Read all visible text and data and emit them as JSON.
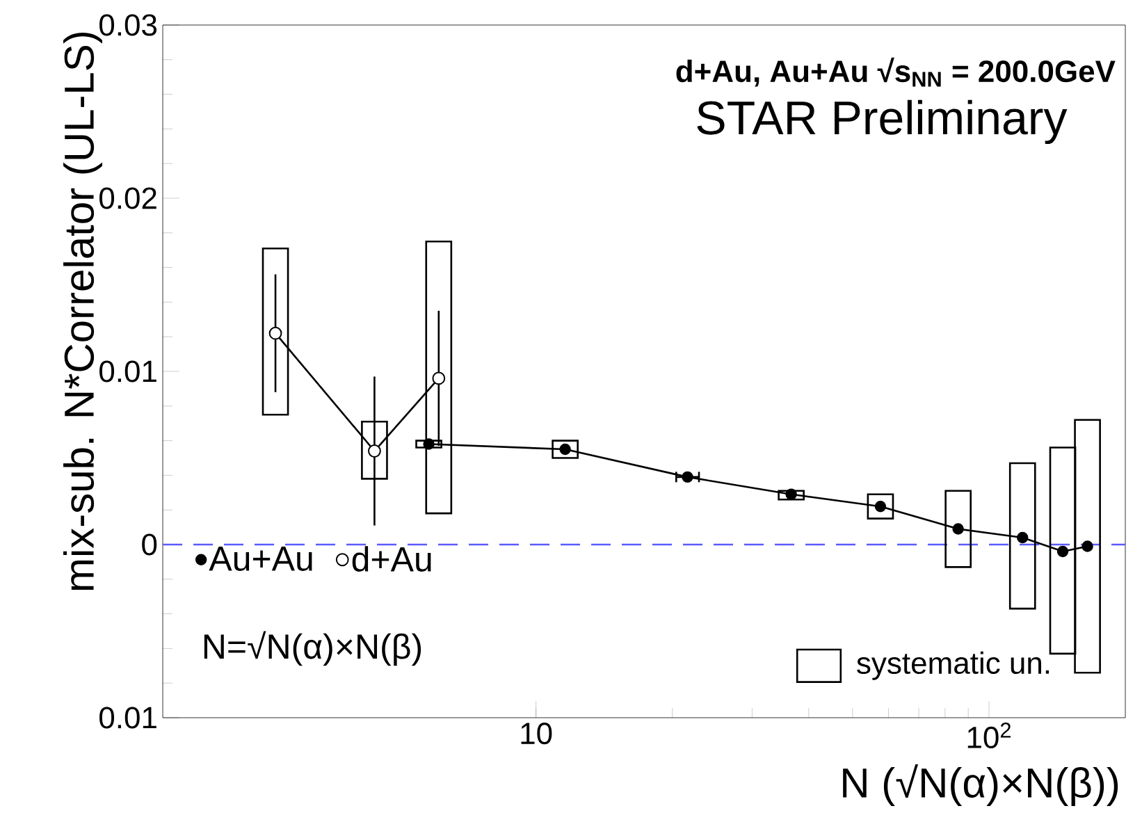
{
  "chart_data": {
    "type": "line",
    "title": "**d+Au, Au+Au √s$_{NN}$ = 200.0GeV**",
    "xlabel": "N (√N(α)×N(β))",
    "ylabel": "mix-sub. N*Correlator (UL-LS)",
    "annotations": [
      "STAR Preliminary",
      "N=√N(α)×N(β)"
    ],
    "log": "x",
    "xlim": [
      1.5,
      200
    ],
    "ylim": [
      -0.01,
      0.03
    ],
    "xticks": [
      {
        "value": 10,
        "label": "10"
      },
      {
        "value": 100,
        "label": "10$^{2}$"
      }
    ],
    "yticks": [
      {
        "value": -0.01,
        "label": "0.01"
      },
      0,
      0.01,
      0.02,
      0.03
    ],
    "marker": "circle",
    "line_style": "solid",
    "legend": "bottom left",
    "grid": false,
    "ref_lines": [
      {
        "axis": "y",
        "value": 0,
        "color": "#5a5aff",
        "line_style": "dashed"
      }
    ],
    "series": [
      {
        "name": "Au+Au",
        "color": "#000000",
        "x": [
          5.8,
          11.6,
          21.6,
          36.6,
          57.6,
          85.5,
          118.6,
          145.5,
          165
        ],
        "values": [
          0.0058,
          0.0055,
          0.0039,
          0.0029,
          0.0022,
          0.0009,
          0.0004,
          -0.0004,
          -0.0001
        ],
        "xerrors": [
          null,
          null,
          [
            20.4,
            22.9
          ],
          null,
          null,
          null,
          null,
          null,
          null
        ]
      },
      {
        "name": "d+Au",
        "color": "#000000",
        "x": [
          2.66,
          4.4,
          6.1
        ],
        "values": [
          0.0122,
          0.0054,
          0.0096
        ],
        "errors": [
          [
            0.0088,
            0.0156
          ],
          [
            0.0011,
            0.0097
          ],
          [
            0.0057,
            0.0135
          ]
        ]
      },
      {
        "name": "systematic un.",
        "type": "bar",
        "color": "#000000",
        "x": [
          2.66,
          4.4,
          5.8,
          6.1,
          11.6,
          36.6,
          57.6,
          85.5,
          118.6,
          145.5,
          165
        ],
        "base": [
          0.0075,
          0.0038,
          0.0056,
          0.0018,
          0.005,
          0.0026,
          0.0015,
          -0.0013,
          -0.0037,
          -0.0063,
          -0.0074
        ],
        "values": [
          0.0096,
          0.0033,
          0.0004,
          0.0157,
          0.001,
          0.0005,
          0.0014,
          0.0044,
          0.0084,
          0.0119,
          0.0146
        ]
      }
    ]
  }
}
